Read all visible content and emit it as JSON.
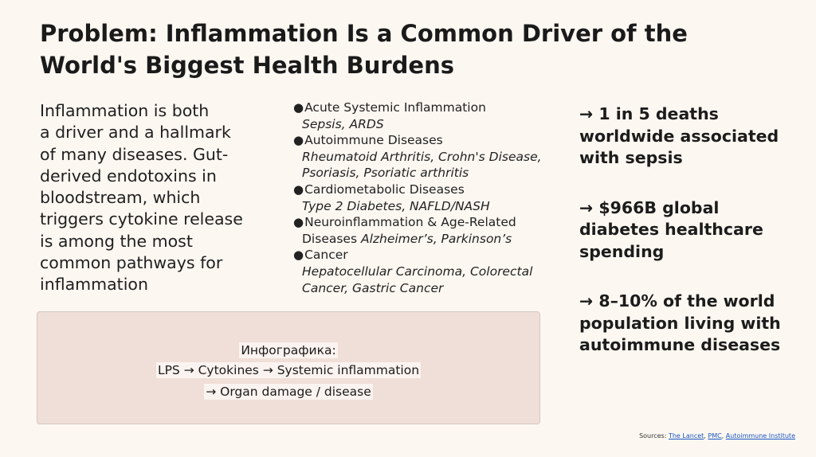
{
  "title": {
    "line1": "Problem: Inflammation Is a Common Driver of the",
    "line2": "World's Biggest Health Burdens"
  },
  "intro": {
    "lines": [
      "Inflammation is both",
      "a driver and a hallmark",
      "of many diseases. Gut-",
      "derived endotoxins in",
      "bloodstream, which",
      "triggers cytokine release",
      "is among the most",
      "common pathways for",
      "inflammation"
    ]
  },
  "list": {
    "bullet": "●",
    "items": [
      {
        "title": "Acute Systemic Inflammation",
        "sub_lines": [
          "Sepsis, ARDS"
        ]
      },
      {
        "title": "Autoimmune Diseases",
        "sub_lines": [
          "Rheumatoid Arthritis, Crohn's Disease,",
          "Psoriasis, Psoriatic arthritis"
        ]
      },
      {
        "title": "Cardiometabolic Diseases",
        "sub_lines": [
          "Type 2 Diabetes, NAFLD/NASH"
        ]
      },
      {
        "title": "Neuroinflammation & Age-Related",
        "plain_prefix": "Diseases ",
        "sub_lines": [
          "Alzheimer’s, Parkinson’s"
        ]
      },
      {
        "title": "Cancer",
        "sub_lines": [
          "Hepatocellular Carcinoma, Colorectal",
          "Cancer, Gastric Cancer"
        ]
      }
    ]
  },
  "stats": [
    {
      "lines": [
        "→ 1 in 5 deaths",
        "worldwide associated",
        "with sepsis"
      ]
    },
    {
      "lines": [
        "→ $966B global",
        "diabetes healthcare",
        "spending"
      ]
    },
    {
      "lines": [
        "→ 8–10% of the world",
        "population living with",
        "autoimmune diseases"
      ]
    }
  ],
  "infographic": {
    "label": "Инфографика:",
    "line1": "LPS → Cytokines → Systemic inflammation",
    "line2": "→ Organ damage / disease"
  },
  "sources": {
    "prefix": "Sources: ",
    "links": [
      "The Lancet",
      "PMC",
      "Autoimmune Institute"
    ],
    "separator": ", "
  },
  "colors": {
    "background": "#fcf7f1",
    "infobox": "#efdfd8",
    "link": "#1a56c4"
  }
}
